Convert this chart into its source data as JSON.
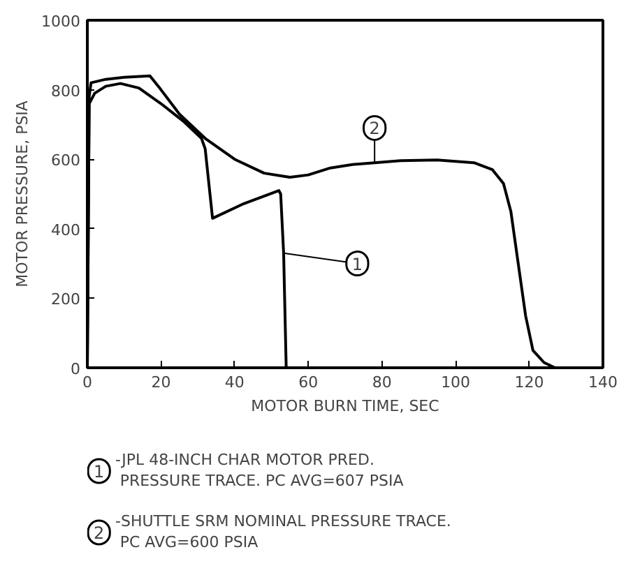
{
  "chart_data": {
    "type": "line",
    "xlabel": "MOTOR BURN TIME, SEC",
    "ylabel": "MOTOR PRESSURE, PSIA",
    "xlim": [
      0,
      140
    ],
    "ylim": [
      0,
      1000
    ],
    "xticks": [
      0,
      20,
      40,
      60,
      80,
      100,
      120,
      140
    ],
    "yticks": [
      0,
      200,
      400,
      600,
      800,
      1000
    ],
    "grid": false,
    "legend": "bottom",
    "line_style": "solid",
    "marker": "none",
    "series": [
      {
        "name": "1",
        "color": "#000000",
        "x": [
          0,
          0.5,
          2,
          5,
          9,
          14,
          20,
          26,
          31,
          32,
          34,
          42,
          52,
          52.5,
          53.3,
          54
        ],
        "values": [
          0,
          760,
          790,
          810,
          818,
          805,
          760,
          710,
          660,
          630,
          430,
          470,
          510,
          500,
          330,
          0
        ]
      },
      {
        "name": "2",
        "color": "#000000",
        "x": [
          0,
          0.5,
          1,
          5,
          10,
          17,
          20,
          25,
          32,
          40,
          48,
          55,
          60,
          66,
          72,
          78,
          85,
          95,
          105,
          110,
          113,
          115,
          117,
          119,
          121,
          124,
          127
        ],
        "values": [
          0,
          780,
          820,
          830,
          836,
          840,
          800,
          730,
          660,
          600,
          560,
          548,
          555,
          575,
          585,
          590,
          596,
          598,
          590,
          570,
          530,
          450,
          300,
          150,
          50,
          15,
          0
        ]
      }
    ],
    "annotations": [
      "-JPL 48-INCH CHAR MOTOR PRED.\nPRESSURE TRACE.  PC AVG=607 PSIA",
      "-SHUTTLE SRM NOMINAL PRESSURE TRACE.\nPC AVG=600 PSIA"
    ]
  }
}
